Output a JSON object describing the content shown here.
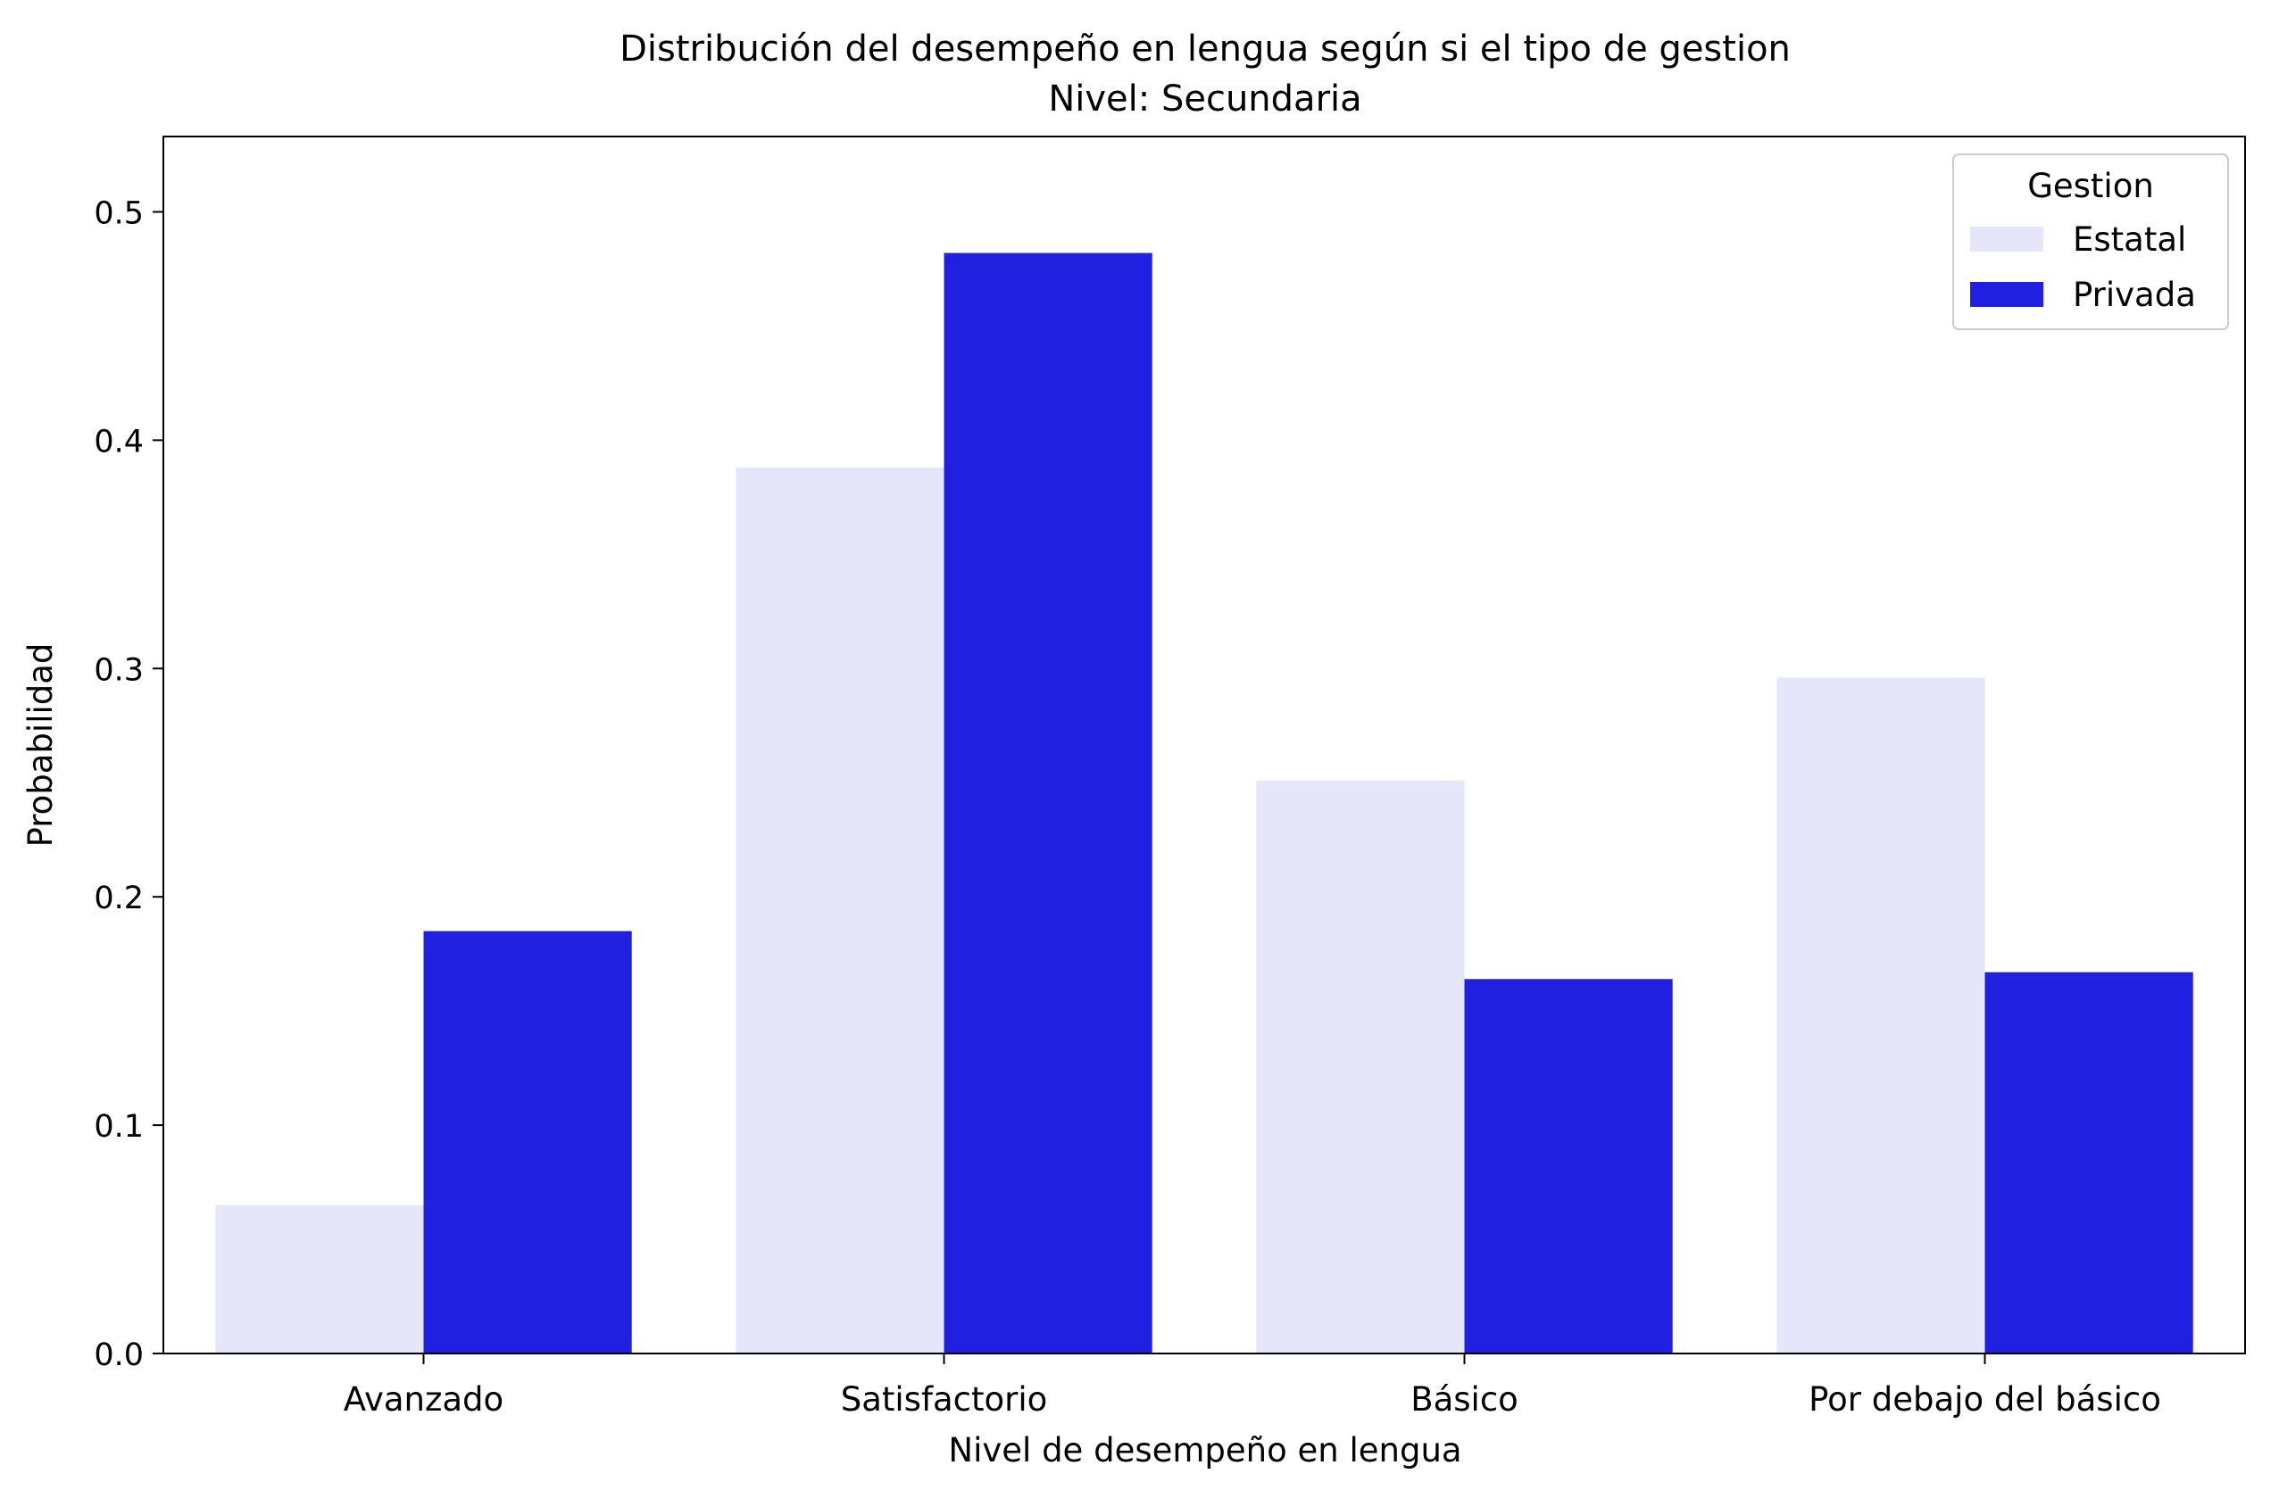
{
  "chart_data": {
    "type": "bar",
    "title": "Distribución del desempeño en lengua según si el tipo de gestion",
    "subtitle": "Nivel: Secundaria",
    "xlabel": "Nivel de desempeño en lengua",
    "ylabel": "Probabilidad",
    "categories": [
      "Avanzado",
      "Satisfactorio",
      "Básico",
      "Por debajo del básico"
    ],
    "series": [
      {
        "name": "Estatal",
        "color": "#e6e6fa",
        "values": [
          0.065,
          0.388,
          0.251,
          0.296
        ]
      },
      {
        "name": "Privada",
        "color": "#2020e0",
        "values": [
          0.185,
          0.482,
          0.164,
          0.167
        ]
      }
    ],
    "ylim": [
      0,
      0.533
    ],
    "yticks": [
      0.0,
      0.1,
      0.2,
      0.3,
      0.4,
      0.5
    ],
    "ytick_labels": [
      "0.0",
      "0.1",
      "0.2",
      "0.3",
      "0.4",
      "0.5"
    ],
    "grid": false,
    "legend": {
      "title": "Gestion",
      "position": "top-right"
    }
  }
}
